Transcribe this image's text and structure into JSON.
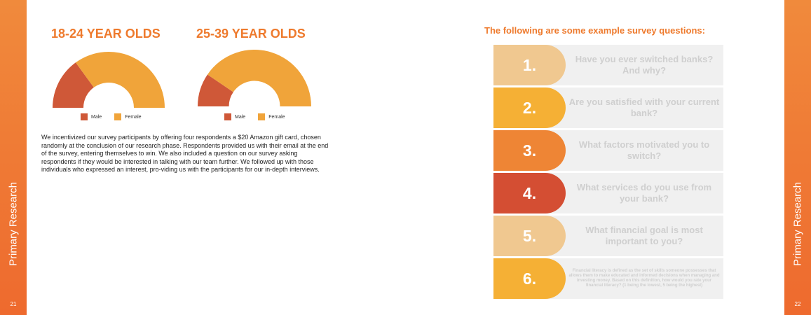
{
  "left_page": {
    "side_label": "Primary Research",
    "page_number": "21",
    "charts": [
      {
        "title": "18-24 YEAR OLDS",
        "legend": [
          "Male",
          "Female"
        ]
      },
      {
        "title": "25-39 YEAR OLDS",
        "legend": [
          "Male",
          "Female"
        ]
      }
    ],
    "body_text": "We incentivized our survey participants by offering four respondents a $20 Amazon gift card, chosen randomly at the conclusion of our research phase. Respondents provided us with their email at the end of the survey, entering themselves to win. We also included a question on our survey asking respondents if they would be interested in talking with our team further. We followed up with those individuals who expressed an interest, pro-viding us with the participants for our in-depth interviews."
  },
  "right_page": {
    "side_label": "Primary Research",
    "page_number": "22",
    "heading": "The following are some example survey questions:",
    "questions": [
      {
        "number": "1.",
        "text": "Have you ever switched banks? And why?",
        "color": "#f0c890"
      },
      {
        "number": "2.",
        "text": "Are you satisfied with your current bank?",
        "color": "#f5b035"
      },
      {
        "number": "3.",
        "text": "What factors motivated you to switch?",
        "color": "#ee8535"
      },
      {
        "number": "4.",
        "text": "What services do you use from your bank?",
        "color": "#d44e33"
      },
      {
        "number": "5.",
        "text": "What financial goal is most important to you?",
        "color": "#f0c890"
      },
      {
        "number": "6.",
        "text": "Financial literacy is defined as the set of skills someone possesses that allows them to make educated and informed decisions when managing and investing money. Based on this definition, how would you rate your financial literacy? (1 being the lowest, 5 being the highest)",
        "color": "#f5b035"
      }
    ]
  },
  "colors": {
    "accent": "#ee7a2d",
    "male": "#cf5838",
    "female": "#f0a43a"
  },
  "chart_data": [
    {
      "type": "pie",
      "categories": [
        "Male",
        "Female"
      ],
      "values": [
        30,
        70
      ],
      "title": "18-24 YEAR OLDS",
      "legend": "bottom"
    },
    {
      "type": "pie",
      "categories": [
        "Male",
        "Female"
      ],
      "values": [
        19,
        81
      ],
      "title": "25-39 YEAR OLDS",
      "legend": "bottom"
    }
  ]
}
